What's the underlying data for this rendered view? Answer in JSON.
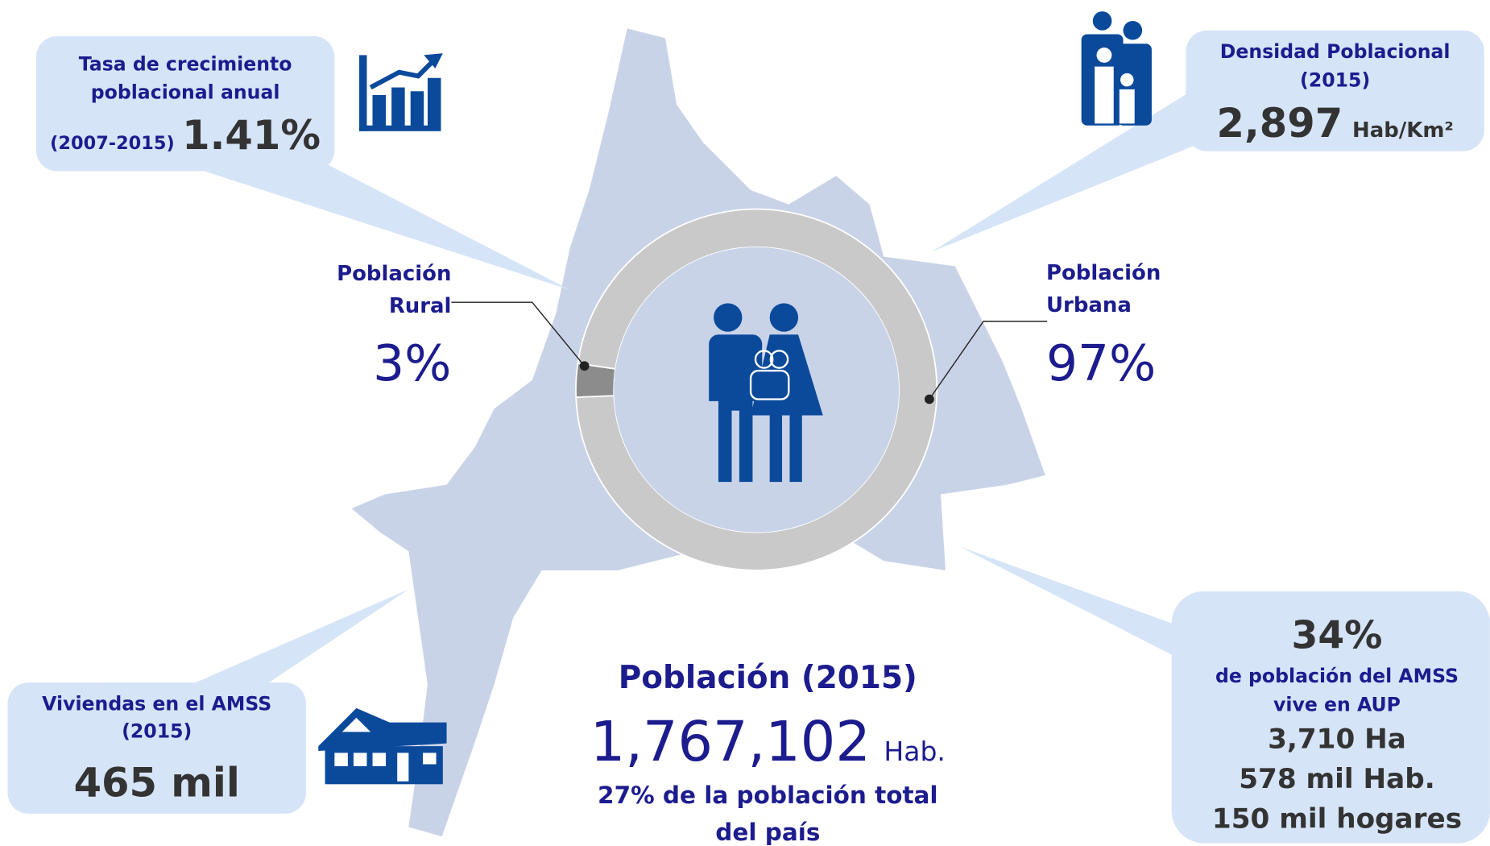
{
  "chart_data": {
    "type": "pie",
    "categories": [
      "Población Rural",
      "Población Urbana"
    ],
    "values": [
      3,
      97
    ],
    "value_labels": [
      "3%",
      "97%"
    ],
    "colors": [
      "#8c8c8c",
      "#c9c9c9"
    ]
  },
  "callouts": {
    "growth": {
      "lines": [
        "Tasa de crecimiento",
        "poblacional anual"
      ],
      "period": "(2007-2015)",
      "value": "1.41%"
    },
    "density": {
      "lines": [
        "Densidad Poblacional",
        "(2015)"
      ],
      "value": "2,897",
      "unit": "Hab/Km²"
    },
    "housing": {
      "lines": [
        "Viviendas en el AMSS",
        "(2015)"
      ],
      "value": "465 mil"
    },
    "aup": {
      "value": "34%",
      "lines": [
        "de población del AMSS",
        "vive en AUP"
      ],
      "stats": [
        "3,710 Ha",
        "578 mil Hab.",
        "150 mil hogares"
      ]
    },
    "population": {
      "title": "Población (2015)",
      "value": "1,767,102",
      "unit": "Hab.",
      "lines": [
        "27% de la población total",
        "del país"
      ]
    }
  }
}
